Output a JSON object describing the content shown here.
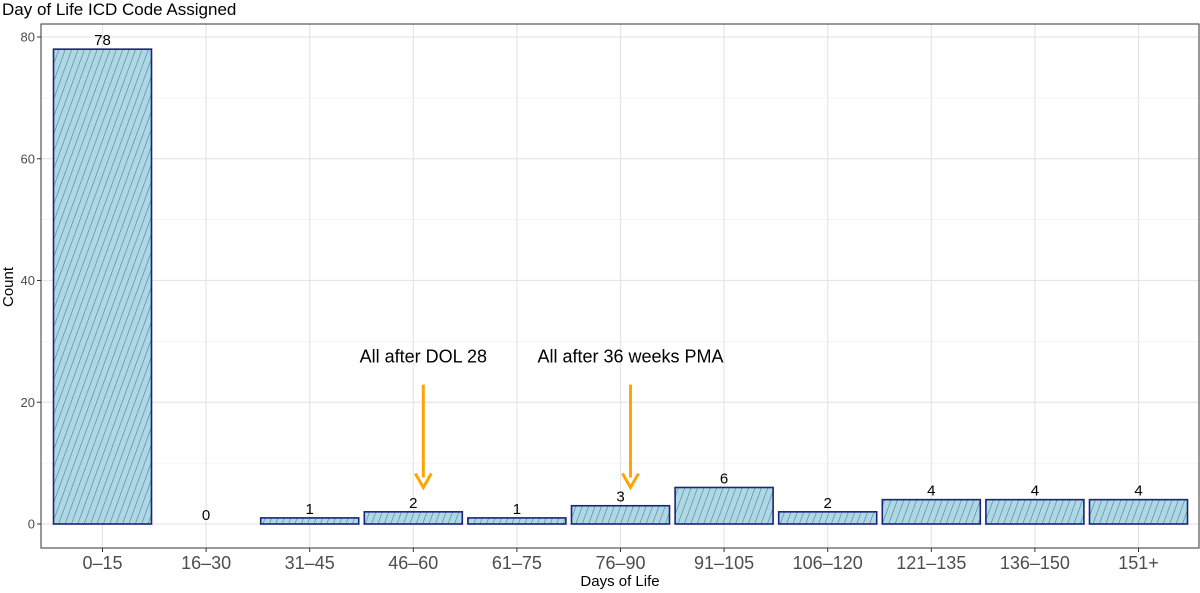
{
  "chart_data": {
    "type": "bar",
    "title": "Day of Life ICD Code Assigned",
    "xlabel": "Days of Life",
    "ylabel": "Count",
    "ylim": [
      0,
      80
    ],
    "yticks": [
      0,
      20,
      40,
      60,
      80
    ],
    "grid": true,
    "categories": [
      "0–15",
      "16–30",
      "31–45",
      "46–60",
      "61–75",
      "76–90",
      "91–105",
      "106–120",
      "121–135",
      "136–150",
      "151+"
    ],
    "values": [
      78,
      0,
      1,
      2,
      1,
      3,
      6,
      2,
      4,
      4,
      4
    ],
    "bar_fill": "#add8e6",
    "bar_stroke": "#1a237e",
    "hatch_color": "#5a7a8a",
    "annotations": [
      {
        "text": "All after DOL 28",
        "category": "46–60",
        "arrow_from_y": 27,
        "arrow_to_y": 6,
        "color": "#ffa500"
      },
      {
        "text": "All after 36 weeks PMA",
        "category": "76–90",
        "arrow_from_y": 27,
        "arrow_to_y": 6,
        "color": "#ffa500"
      }
    ]
  }
}
